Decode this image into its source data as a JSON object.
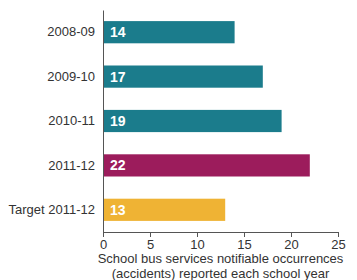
{
  "chart_data": {
    "type": "bar",
    "orientation": "horizontal",
    "categories": [
      "2008-09",
      "2009-10",
      "2010-11",
      "2011-12",
      "Target 2011-12"
    ],
    "values": [
      14,
      17,
      19,
      22,
      13
    ],
    "colors": [
      "#1b7c8c",
      "#1b7c8c",
      "#1b7c8c",
      "#9c1c5c",
      "#efb334"
    ],
    "xlabel": "School bus services notifiable occurrences (accidents) reported each school year",
    "xlim": [
      0,
      25
    ],
    "xticks": [
      0,
      5,
      10,
      15,
      20,
      25
    ],
    "data_labels": true,
    "grid": false
  }
}
